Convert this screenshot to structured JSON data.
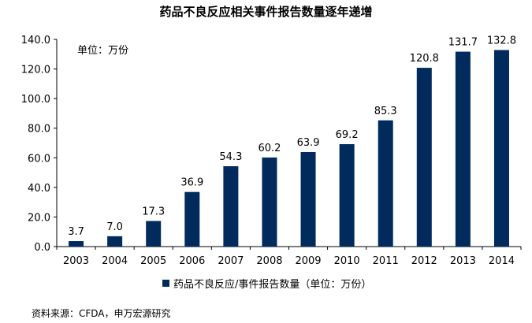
{
  "chart_data": {
    "type": "bar",
    "title": "药品不良反应相关事件报告数量逐年递增",
    "unit_note": "单位：万份",
    "categories": [
      "2003",
      "2004",
      "2005",
      "2006",
      "2007",
      "2008",
      "2009",
      "2010",
      "2011",
      "2012",
      "2013",
      "2014"
    ],
    "series": [
      {
        "name": "药品不良反应/事件报告数量（单位：万份）",
        "values": [
          3.7,
          7.0,
          17.3,
          36.9,
          54.3,
          60.2,
          63.9,
          69.2,
          85.3,
          120.8,
          131.7,
          132.8
        ],
        "labels": [
          "3.7",
          "7.0",
          "17.3",
          "36.9",
          "54.3",
          "60.2",
          "63.9",
          "69.2",
          "85.3",
          "120.8",
          "131.7",
          "132.8"
        ],
        "color": "#002b5c"
      }
    ],
    "ylim": [
      0,
      140
    ],
    "yticks": [
      0,
      20,
      40,
      60,
      80,
      100,
      120,
      140
    ],
    "ytick_labels": [
      "0.0",
      "20.0",
      "40.0",
      "60.0",
      "80.0",
      "100.0",
      "120.0",
      "140.0"
    ],
    "grid": false,
    "legend_position": "bottom",
    "source": "资料来源：CFDA，申万宏源研究"
  }
}
